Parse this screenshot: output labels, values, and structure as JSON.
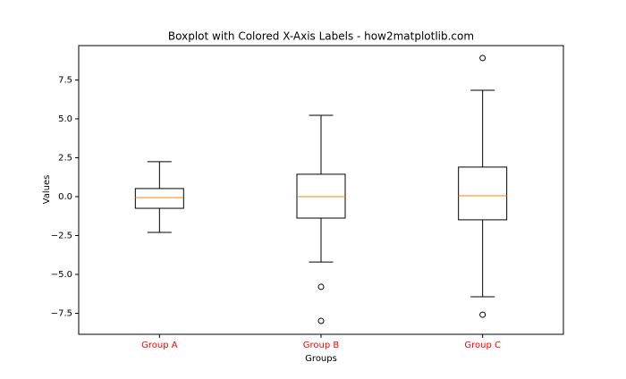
{
  "chart_data": {
    "type": "boxplot",
    "title": "Boxplot with Colored X-Axis Labels - how2matplotlib.com",
    "x_label": "Groups",
    "y_label": "Values",
    "categories": [
      "Group A",
      "Group B",
      "Group C"
    ],
    "tick_label_color": "#ff0000",
    "box_color": "#000000",
    "median_color": "#ff7f0e",
    "boxes": [
      {
        "low": -2.3,
        "q1": -0.75,
        "median": -0.06,
        "q3": 0.52,
        "high": 2.25,
        "outliers": []
      },
      {
        "low": -4.2,
        "q1": -1.38,
        "median": 0.0,
        "q3": 1.44,
        "high": 5.23,
        "outliers": [
          -5.8,
          -7.99
        ]
      },
      {
        "low": -6.44,
        "q1": -1.49,
        "median": 0.06,
        "q3": 1.9,
        "high": 6.84,
        "outliers": [
          8.91,
          -7.59
        ]
      }
    ],
    "ylim": [
      -8.85,
      9.71
    ],
    "yticks": [
      {
        "value": -7.5,
        "label": "−7.5"
      },
      {
        "value": -5,
        "label": "−5.0"
      },
      {
        "value": -2.5,
        "label": "−2.5"
      },
      {
        "value": 0,
        "label": "0.0"
      },
      {
        "value": 2.5,
        "label": "2.5"
      },
      {
        "value": 5,
        "label": "5.0"
      },
      {
        "value": 7.5,
        "label": "7.5"
      }
    ]
  }
}
